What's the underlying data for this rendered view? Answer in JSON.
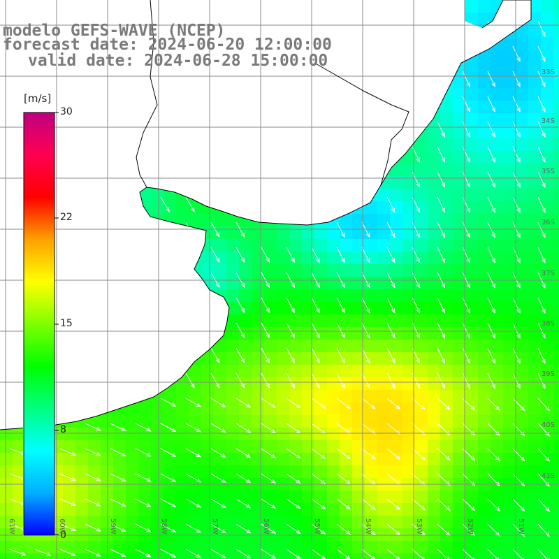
{
  "header": {
    "line1": "modelo GEFS-WAVE (NCEP)",
    "line2": "forecast date: 2024-06-20 12:00:00",
    "line3": "valid date: 2024-06-28 15:00:00"
  },
  "colorbar": {
    "unit": "[m/s]",
    "ticks": [
      "30",
      "22",
      "15",
      "8",
      "0"
    ],
    "colors": [
      "#0000ff",
      "#00b0ff",
      "#00ffff",
      "#00ff80",
      "#00ff00",
      "#80ff00",
      "#ffff00",
      "#ffa000",
      "#ff0000",
      "#ff0050",
      "#c00080"
    ]
  },
  "map": {
    "field_variable": "wind speed",
    "land_color": "#ffffff",
    "coastline_color": "#000000",
    "grid_color": "#888888",
    "lat_labels": [
      "33S",
      "34S",
      "35S",
      "36S",
      "37S",
      "38S",
      "39S",
      "40S",
      "41S"
    ],
    "lon_labels": [
      "61W",
      "60W",
      "59W",
      "58W",
      "57W",
      "56W",
      "55W",
      "54W",
      "53W",
      "52W",
      "51W"
    ]
  }
}
